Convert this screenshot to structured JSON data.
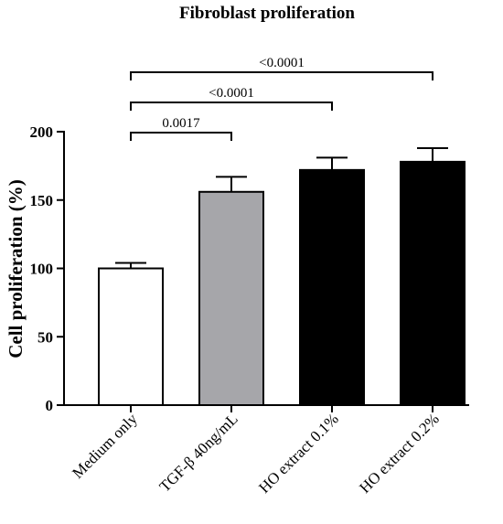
{
  "chart_data": {
    "type": "bar",
    "title": "Fibroblast proliferation",
    "xlabel": "",
    "ylabel": "Cell proliferation (%)",
    "ylim": [
      0,
      200
    ],
    "yticks": [
      0,
      50,
      100,
      150,
      200
    ],
    "categories": [
      "Medium only",
      "TGF-β 40ng/mL",
      "HO extract 0.1%",
      "HO extract 0.2%"
    ],
    "values": [
      100,
      156,
      172,
      178
    ],
    "error_upper": [
      104,
      167,
      181,
      188
    ],
    "bar_colors": [
      "#ffffff",
      "#a6a6aa",
      "#000000",
      "#000000"
    ],
    "grid": false,
    "comparisons": [
      {
        "from": "Medium only",
        "to": "TGF-β 40ng/mL",
        "label": "0.0017"
      },
      {
        "from": "Medium only",
        "to": "HO extract 0.1%",
        "label": "<0.0001"
      },
      {
        "from": "Medium only",
        "to": "HO extract 0.2%",
        "label": "<0.0001"
      }
    ]
  }
}
